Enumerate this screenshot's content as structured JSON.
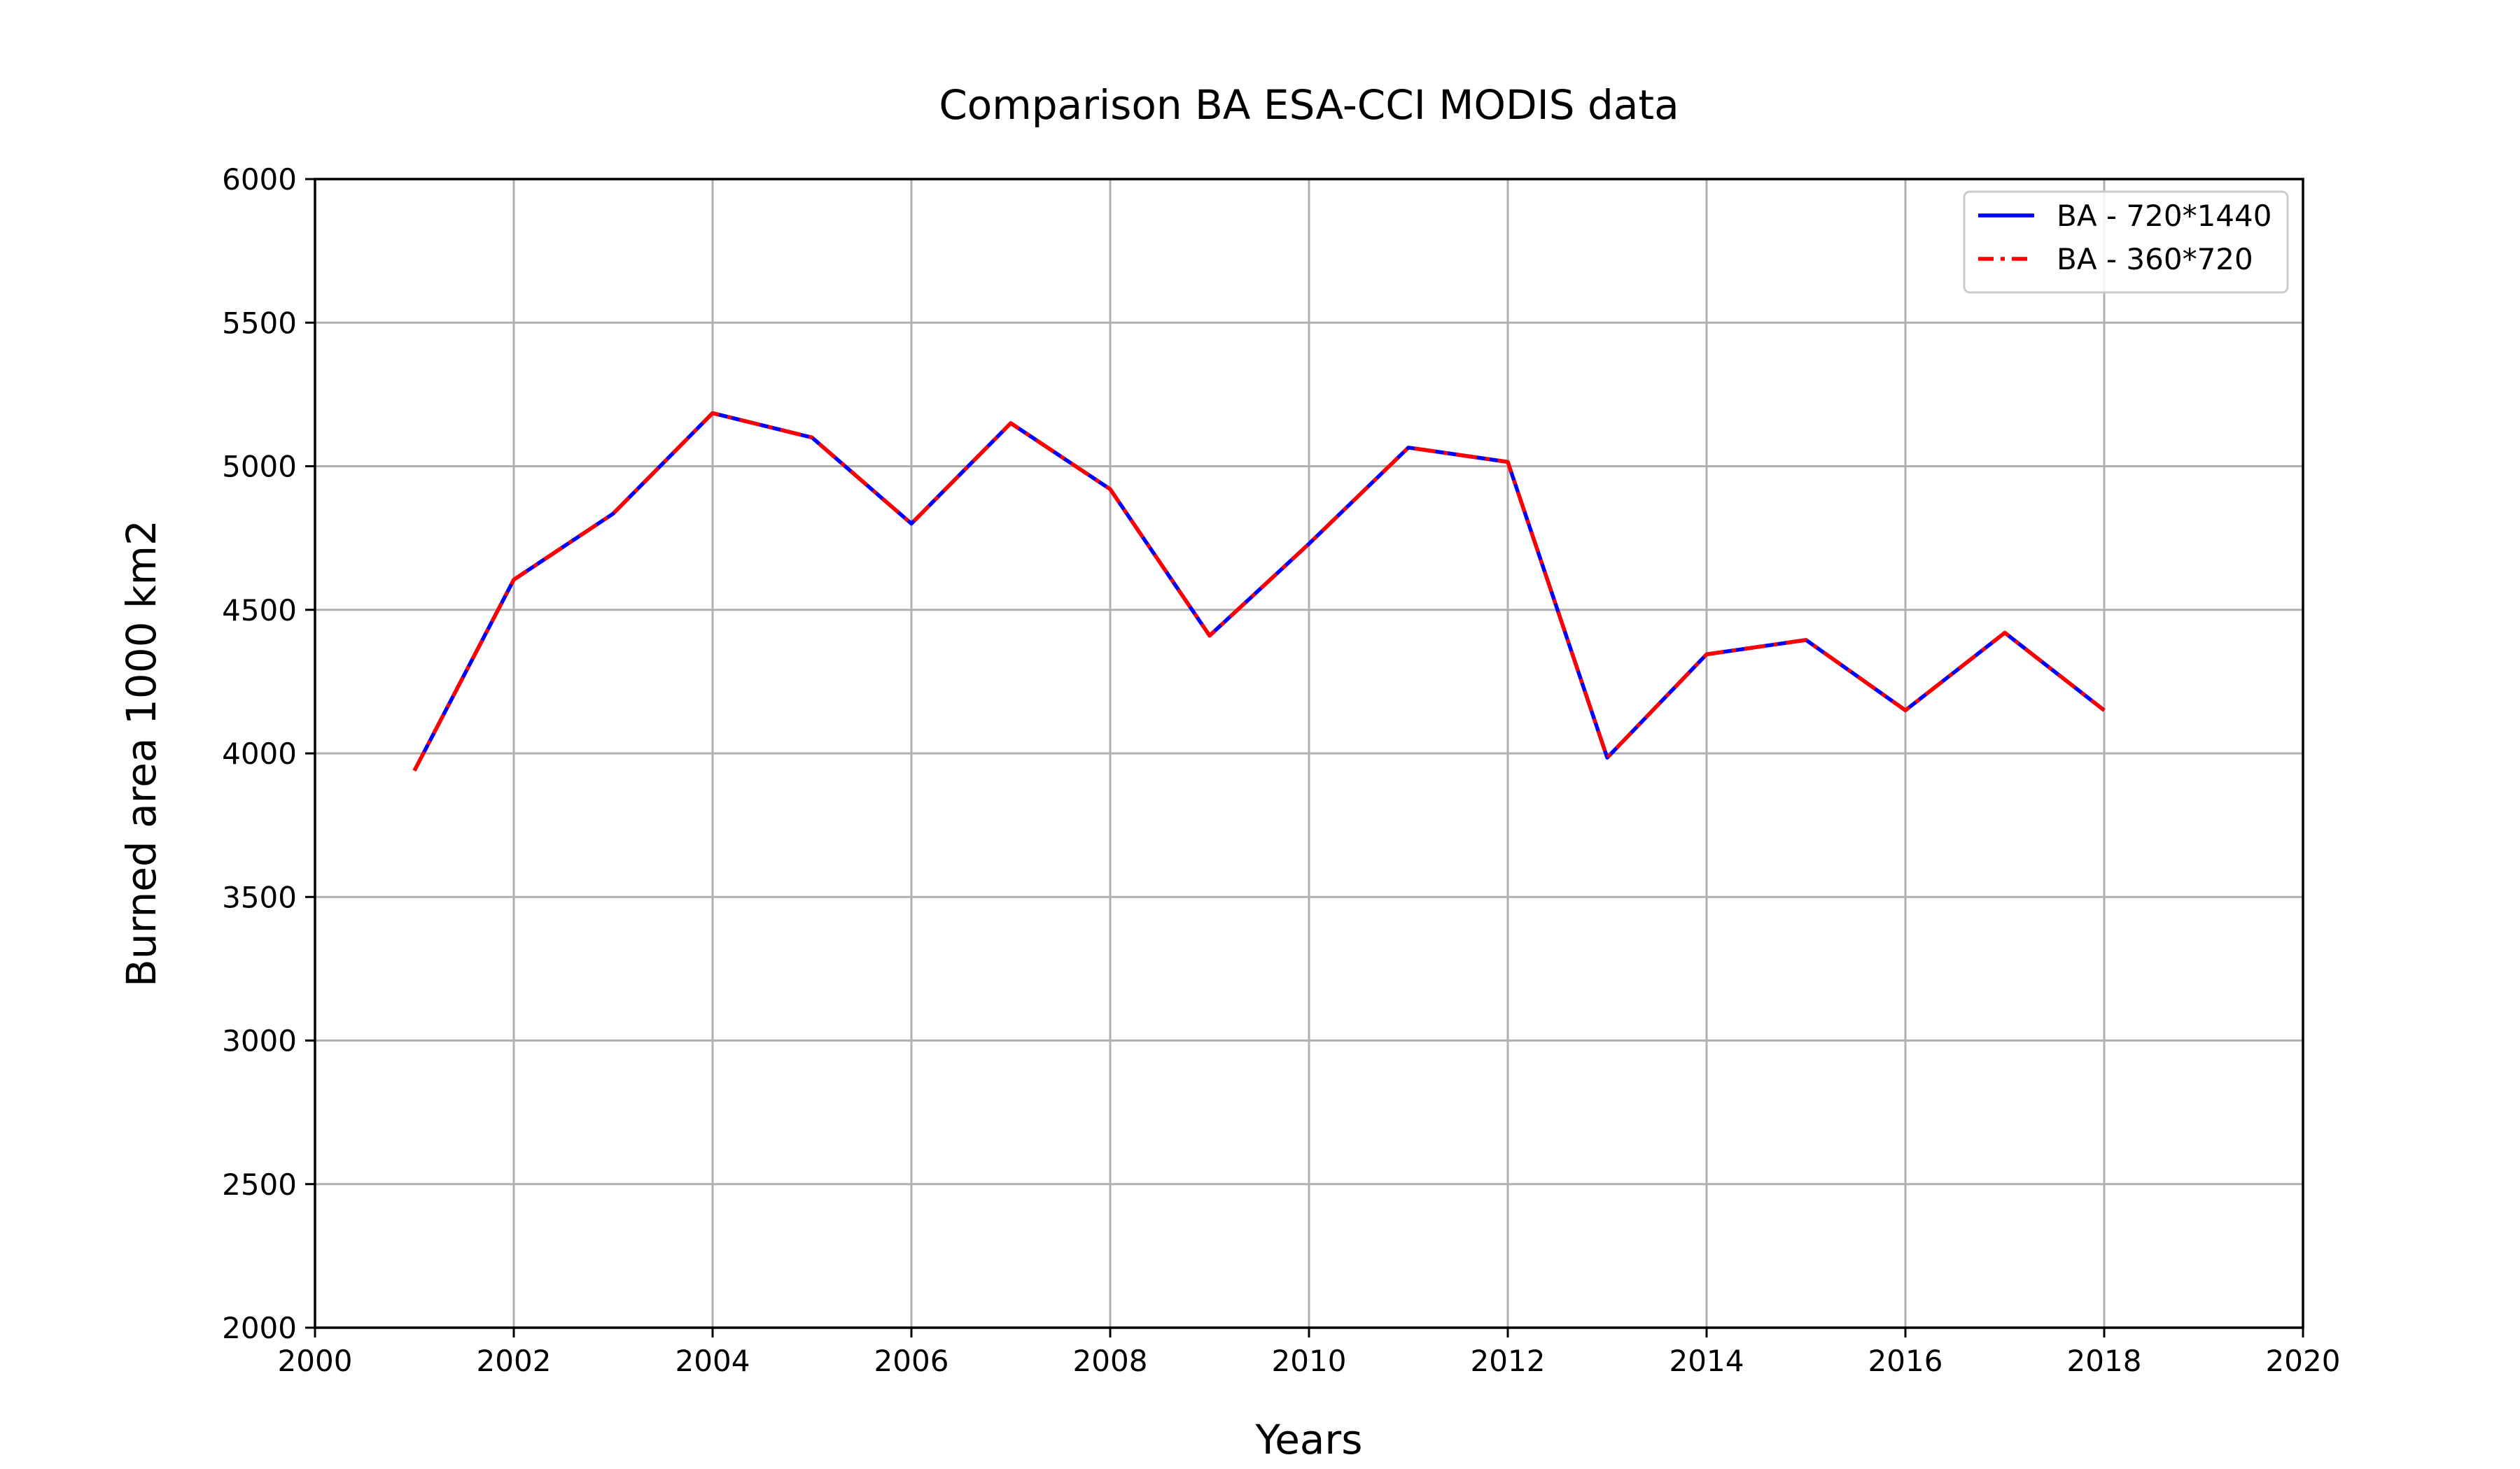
{
  "chart_data": {
    "type": "line",
    "title": "Comparison BA ESA-CCI MODIS data",
    "xlabel": "Years",
    "ylabel": "Burned area 1000 km2",
    "xlim": [
      2000,
      2020
    ],
    "ylim": [
      2000,
      6000
    ],
    "xticks": [
      2000,
      2002,
      2004,
      2006,
      2008,
      2010,
      2012,
      2014,
      2016,
      2018,
      2020
    ],
    "yticks": [
      2000,
      2500,
      3000,
      3500,
      4000,
      4500,
      5000,
      5500,
      6000
    ],
    "grid": true,
    "legend_position": "top-right",
    "x": [
      2001,
      2002,
      2003,
      2004,
      2005,
      2006,
      2007,
      2008,
      2009,
      2010,
      2011,
      2012,
      2013,
      2014,
      2015,
      2016,
      2017,
      2018
    ],
    "series": [
      {
        "name": "BA - 720*1440",
        "color": "#0000ff",
        "line_style": "solid",
        "values": [
          3940,
          4605,
          4835,
          5185,
          5100,
          4800,
          5150,
          4920,
          4410,
          4730,
          5065,
          5015,
          3985,
          4345,
          4395,
          4150,
          4420,
          4150
        ]
      },
      {
        "name": "BA - 360*720",
        "color": "#ff0000",
        "line_style": "dashdot",
        "values": [
          3940,
          4605,
          4835,
          5185,
          5100,
          4800,
          5150,
          4920,
          4410,
          4730,
          5065,
          5015,
          3985,
          4345,
          4395,
          4150,
          4420,
          4150
        ]
      }
    ]
  }
}
